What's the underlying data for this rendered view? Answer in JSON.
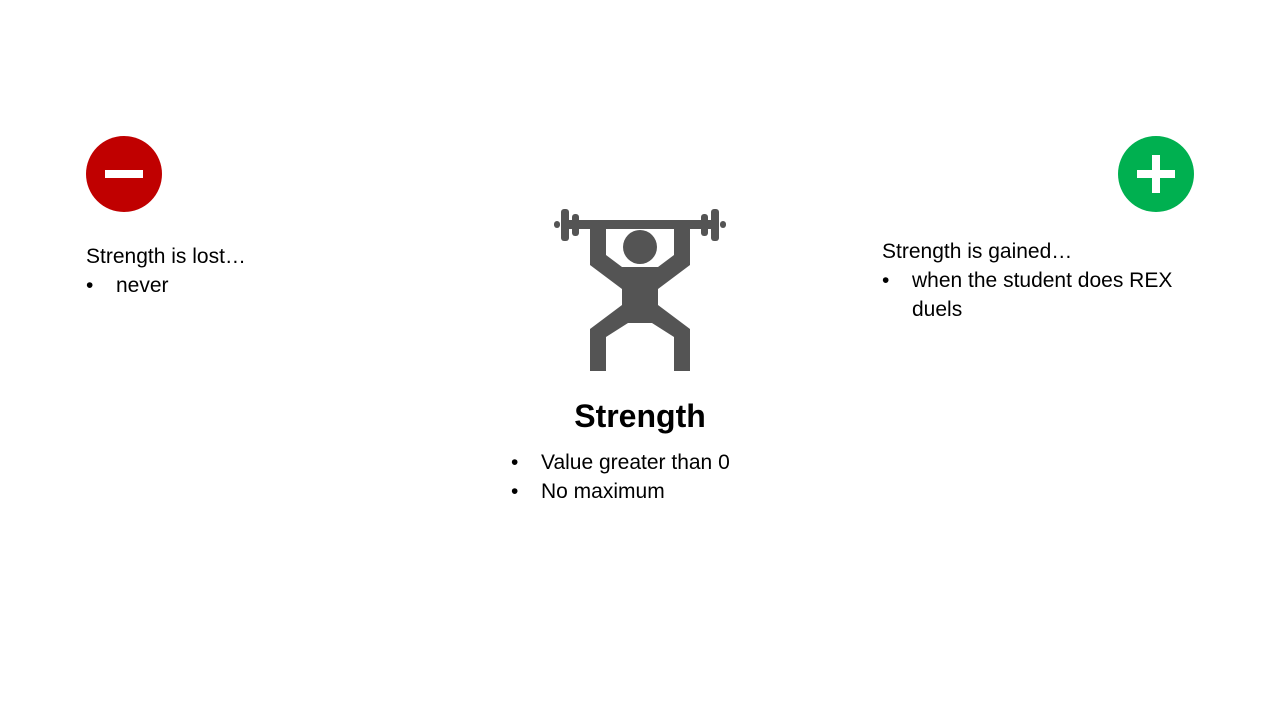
{
  "colors": {
    "minus_badge": "#c00000",
    "plus_badge": "#00b050",
    "icon_gray": "#545454"
  },
  "icons": {
    "minus": "minus-circle-icon",
    "plus": "plus-circle-icon",
    "center": "weightlifter-icon"
  },
  "lost": {
    "heading": "Strength is lost…",
    "items": [
      "never"
    ]
  },
  "gained": {
    "heading": "Strength is gained…",
    "items": [
      "when the student does REX duels"
    ]
  },
  "stat": {
    "title": "Strength",
    "items": [
      "Value greater than 0",
      "No maximum"
    ]
  }
}
